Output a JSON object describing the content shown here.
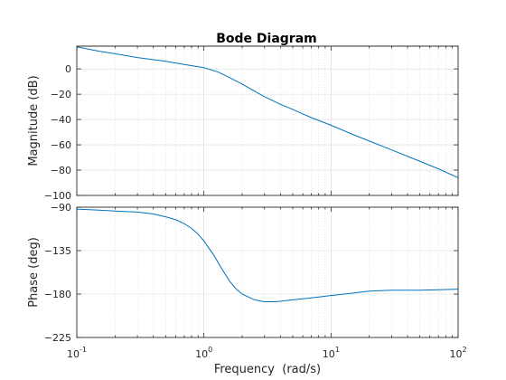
{
  "chart_data": {
    "type": "line",
    "title": "Bode Diagram",
    "xlabel": "Frequency  (rad/s)",
    "xscale": "log",
    "xlim": [
      0.1,
      100
    ],
    "x_tick_labels": [
      {
        "value": 0.1,
        "base": "10",
        "exp": "-1"
      },
      {
        "value": 1,
        "base": "10",
        "exp": "0"
      },
      {
        "value": 10,
        "base": "10",
        "exp": "1"
      },
      {
        "value": 100,
        "base": "10",
        "exp": "2"
      }
    ],
    "grid": true,
    "colors": {
      "line": "#0072bd",
      "axes": "#262626"
    },
    "panels": [
      {
        "name": "magnitude",
        "ylabel": "Magnitude (dB)",
        "ylim": [
          -100,
          18
        ],
        "yticks": [
          0,
          -20,
          -40,
          -60,
          -80,
          -100
        ],
        "ytick_labels": [
          "0",
          "−20",
          "−40",
          "−60",
          "−80",
          "−100"
        ],
        "series": [
          {
            "x": [
              0.1,
              0.15,
              0.2,
              0.3,
              0.5,
              0.7,
              1.0,
              1.3,
              1.6,
              2.0,
              2.5,
              3.0,
              4.0,
              5.0,
              7.0,
              10,
              15,
              20,
              30,
              50,
              70,
              100
            ],
            "y": [
              17.5,
              14,
              12,
              9,
              6,
              3.5,
              1,
              -2.5,
              -7,
              -12,
              -17.5,
              -22,
              -28,
              -32,
              -38.5,
              -44.5,
              -52,
              -57,
              -64,
              -73,
              -79,
              -86
            ]
          }
        ]
      },
      {
        "name": "phase",
        "ylabel": "Phase (deg)",
        "ylim": [
          -225,
          -90
        ],
        "yticks": [
          -90,
          -135,
          -180,
          -225
        ],
        "ytick_labels": [
          "−90",
          "−135",
          "−180",
          "−225"
        ],
        "series": [
          {
            "x": [
              0.1,
              0.15,
              0.2,
              0.3,
              0.4,
              0.5,
              0.6,
              0.7,
              0.8,
              0.9,
              1.0,
              1.2,
              1.4,
              1.6,
              1.8,
              2.0,
              2.5,
              3.0,
              3.5,
              4.0,
              5.0,
              7.0,
              10,
              15,
              20,
              30,
              50,
              70,
              100
            ],
            "y": [
              -92,
              -93,
              -94,
              -95,
              -97,
              -100,
              -103,
              -107,
              -112,
              -118,
              -125,
              -140,
              -155,
              -167,
              -175,
              -180,
              -186,
              -188,
              -188,
              -187.5,
              -186,
              -184,
              -181.5,
              -179,
              -177,
              -176,
              -176,
              -175.5,
              -175
            ]
          }
        ]
      }
    ]
  }
}
